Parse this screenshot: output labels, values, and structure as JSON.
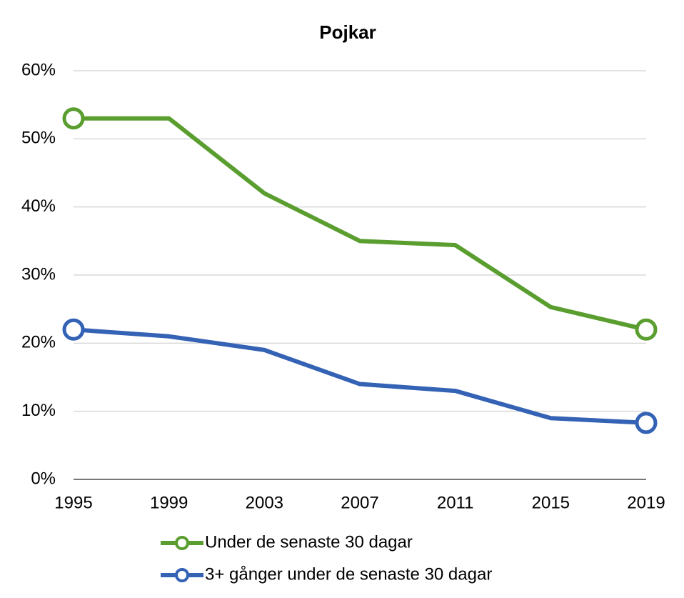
{
  "chart_data": {
    "type": "line",
    "title": "Pojkar",
    "categories": [
      "1995",
      "1999",
      "2003",
      "2007",
      "2011",
      "2015",
      "2019"
    ],
    "series": [
      {
        "name": "Under de senaste 30 dagar",
        "color": "#5a9e2f",
        "values": [
          53,
          53,
          42,
          35,
          34.4,
          25.3,
          22
        ]
      },
      {
        "name": "3+ gånger under de senaste 30 dagar",
        "color": "#3462b4",
        "values": [
          22,
          21,
          19,
          14,
          13,
          9,
          8.3
        ]
      }
    ],
    "ylim": [
      0,
      60
    ],
    "yticks": [
      {
        "value": 0,
        "label": "0%"
      },
      {
        "value": 10,
        "label": "10%"
      },
      {
        "value": 20,
        "label": "20%"
      },
      {
        "value": 30,
        "label": "30%"
      },
      {
        "value": 40,
        "label": "40%"
      },
      {
        "value": 50,
        "label": "50%"
      },
      {
        "value": 60,
        "label": "60%"
      }
    ],
    "grid": true,
    "legend": "bottom"
  }
}
